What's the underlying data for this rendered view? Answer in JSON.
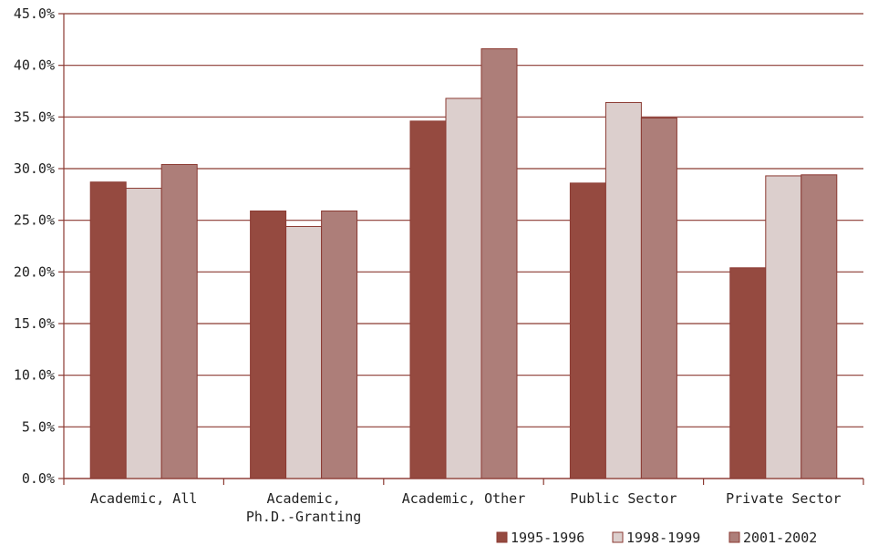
{
  "chart_data": {
    "type": "bar",
    "title": "",
    "xlabel": "",
    "ylabel": "",
    "categories": [
      [
        "Academic, All"
      ],
      [
        "Academic,",
        "Ph.D.-Granting"
      ],
      [
        "Academic, Other"
      ],
      [
        "Public Sector"
      ],
      [
        "Private Sector"
      ]
    ],
    "series": [
      {
        "name": "1995-1996",
        "color": "#954a40",
        "values": [
          28.7,
          25.9,
          34.6,
          28.6,
          20.4
        ]
      },
      {
        "name": "1998-1999",
        "color": "#dccfcd",
        "values": [
          28.1,
          24.4,
          36.8,
          36.4,
          29.3
        ]
      },
      {
        "name": "2001-2002",
        "color": "#ad7e79",
        "values": [
          30.4,
          25.9,
          41.6,
          34.9,
          29.4
        ]
      }
    ],
    "ylim": [
      0,
      45
    ],
    "yticks": [
      0,
      5,
      10,
      15,
      20,
      25,
      30,
      35,
      40,
      45
    ],
    "ytick_labels": [
      "0.0%",
      "5.0%",
      "10.0%",
      "15.0%",
      "20.0%",
      "25.0%",
      "30.0%",
      "35.0%",
      "40.0%",
      "45.0%"
    ],
    "grid": true,
    "legend_position": "bottom-right",
    "colors": {
      "grid": "#8b3a32",
      "bar_stroke": "#8b3a32"
    }
  }
}
